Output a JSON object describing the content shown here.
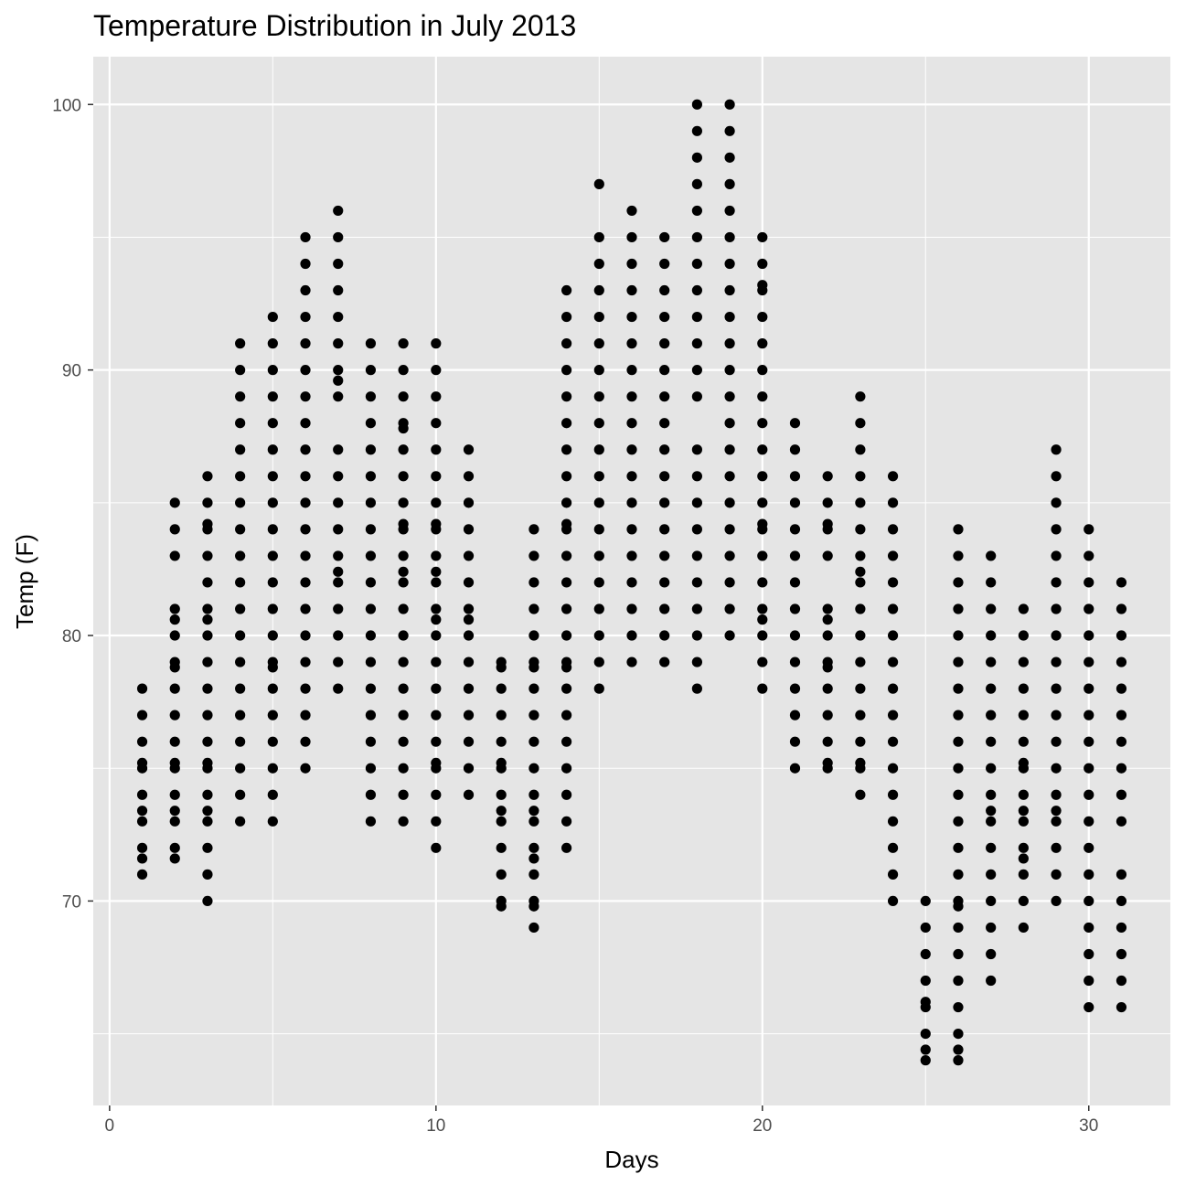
{
  "chart_data": {
    "type": "scatter",
    "title": "Temperature Distribution in July 2013",
    "xlabel": "Days",
    "ylabel": "Temp (F)",
    "xlim": [
      -0.5,
      32.5
    ],
    "ylim": [
      62.3,
      101.8
    ],
    "x_ticks": [
      0,
      10,
      20,
      30
    ],
    "y_ticks": [
      70,
      80,
      90,
      100
    ],
    "grid": true,
    "legend": "none",
    "colors": {
      "panel": "#e5e5e5",
      "grid": "#ffffff",
      "point": "#000000",
      "tick_text": "#4d4d4d"
    },
    "points": [
      [
        1,
        [
          71,
          71.6,
          72,
          73,
          73.4,
          74,
          75,
          75.2,
          76,
          77,
          78
        ]
      ],
      [
        2,
        [
          71.6,
          72,
          73,
          73.4,
          74,
          75,
          75.2,
          76,
          77,
          78,
          78.8,
          79,
          80,
          80.6,
          81,
          83,
          84,
          85
        ]
      ],
      [
        3,
        [
          70,
          71,
          72,
          73,
          73.4,
          74,
          75,
          75.2,
          76,
          77,
          78,
          79,
          80,
          80.6,
          81,
          82,
          83,
          84,
          84.2,
          85,
          86
        ]
      ],
      [
        4,
        [
          73,
          74,
          75,
          76,
          77,
          78,
          79,
          80,
          81,
          82,
          83,
          84,
          85,
          86,
          87,
          88,
          89,
          90,
          91
        ]
      ],
      [
        5,
        [
          73,
          74,
          75,
          76,
          77,
          78,
          78.8,
          79,
          80,
          81,
          82,
          83,
          84,
          85,
          86,
          87,
          88,
          89,
          90,
          91,
          92
        ]
      ],
      [
        6,
        [
          75,
          76,
          77,
          78,
          79,
          80,
          81,
          82,
          83,
          84,
          85,
          86,
          87,
          88,
          89,
          90,
          91,
          92,
          93,
          94,
          95
        ]
      ],
      [
        7,
        [
          78,
          79,
          80,
          81,
          82,
          82.4,
          83,
          84,
          85,
          86,
          87,
          89,
          89.6,
          90,
          91,
          92,
          93,
          94,
          95,
          96
        ]
      ],
      [
        8,
        [
          73,
          74,
          75,
          76,
          77,
          78,
          79,
          80,
          81,
          82,
          83,
          84,
          85,
          86,
          87,
          88,
          89,
          90,
          91
        ]
      ],
      [
        9,
        [
          73,
          74,
          75,
          76,
          77,
          78,
          79,
          80,
          81,
          82,
          82.4,
          83,
          84,
          84.2,
          85,
          86,
          87,
          87.8,
          88,
          89,
          90,
          91
        ]
      ],
      [
        10,
        [
          72,
          73,
          74,
          75,
          75.2,
          76,
          77,
          78,
          79,
          80,
          80.6,
          81,
          82,
          82.4,
          83,
          84,
          84.2,
          85,
          86,
          87,
          88,
          89,
          90,
          91
        ]
      ],
      [
        11,
        [
          74,
          75,
          76,
          77,
          78,
          79,
          80,
          80.6,
          81,
          82,
          83,
          84,
          85,
          86,
          87
        ]
      ],
      [
        12,
        [
          69.8,
          70,
          71,
          72,
          73,
          73.4,
          74,
          75,
          75.2,
          76,
          77,
          78,
          78.8,
          79
        ]
      ],
      [
        13,
        [
          69,
          69.8,
          70,
          71,
          71.6,
          72,
          73,
          73.4,
          74,
          75,
          76,
          77,
          78,
          78.8,
          79,
          80,
          81,
          82,
          83,
          84
        ]
      ],
      [
        14,
        [
          72,
          73,
          74,
          75,
          76,
          77,
          78,
          78.8,
          79,
          80,
          81,
          82,
          83,
          84,
          84.2,
          85,
          86,
          87,
          88,
          89,
          90,
          91,
          92,
          93
        ]
      ],
      [
        15,
        [
          78,
          79,
          80,
          81,
          82,
          83,
          84,
          85,
          86,
          87,
          88,
          89,
          90,
          91,
          92,
          93,
          94,
          95,
          97
        ]
      ],
      [
        16,
        [
          79,
          80,
          81,
          82,
          83,
          84,
          85,
          86,
          87,
          88,
          89,
          90,
          91,
          92,
          93,
          94,
          95,
          96
        ]
      ],
      [
        17,
        [
          79,
          80,
          81,
          82,
          83,
          84,
          85,
          86,
          87,
          88,
          89,
          90,
          91,
          92,
          93,
          94,
          95
        ]
      ],
      [
        18,
        [
          78,
          79,
          80,
          81,
          82,
          83,
          84,
          85,
          86,
          87,
          89,
          90,
          91,
          92,
          93,
          94,
          95,
          96,
          97,
          98,
          99,
          100
        ]
      ],
      [
        19,
        [
          80,
          81,
          82,
          83,
          84,
          85,
          86,
          87,
          88,
          89,
          90,
          91,
          92,
          93,
          94,
          95,
          96,
          97,
          98,
          99,
          100
        ]
      ],
      [
        20,
        [
          78,
          79,
          80,
          80.6,
          81,
          82,
          83,
          84,
          84.2,
          85,
          86,
          87,
          88,
          89,
          90,
          91,
          92,
          93,
          93.2,
          94,
          95
        ]
      ],
      [
        21,
        [
          75,
          76,
          77,
          78,
          79,
          80,
          81,
          82,
          83,
          84,
          85,
          86,
          87,
          88
        ]
      ],
      [
        22,
        [
          75,
          75.2,
          76,
          77,
          78,
          78.8,
          79,
          80,
          80.6,
          81,
          83,
          84,
          84.2,
          85,
          86
        ]
      ],
      [
        23,
        [
          74,
          75,
          75.2,
          76,
          77,
          78,
          79,
          80,
          81,
          82,
          82.4,
          83,
          84,
          85,
          86,
          87,
          88,
          89
        ]
      ],
      [
        24,
        [
          70,
          71,
          72,
          73,
          74,
          75,
          76,
          77,
          78,
          79,
          80,
          81,
          82,
          83,
          84,
          85,
          86
        ]
      ],
      [
        25,
        [
          64,
          64.4,
          65,
          66,
          66.2,
          67,
          68,
          69,
          70
        ]
      ],
      [
        26,
        [
          64,
          64.4,
          65,
          66,
          67,
          68,
          69,
          69.8,
          70,
          71,
          72,
          73,
          74,
          75,
          76,
          77,
          78,
          79,
          80,
          81,
          82,
          83,
          84
        ]
      ],
      [
        27,
        [
          67,
          68,
          69,
          70,
          71,
          72,
          73,
          73.4,
          74,
          75,
          76,
          77,
          78,
          79,
          80,
          81,
          82,
          83
        ]
      ],
      [
        28,
        [
          69,
          70,
          71,
          71.6,
          72,
          73,
          73.4,
          74,
          75,
          75.2,
          76,
          77,
          78,
          79,
          80,
          81
        ]
      ],
      [
        29,
        [
          70,
          71,
          72,
          73,
          73.4,
          74,
          75,
          76,
          77,
          78,
          79,
          80,
          81,
          82,
          83,
          84,
          85,
          86,
          87
        ]
      ],
      [
        30,
        [
          66,
          67,
          68,
          69,
          70,
          71,
          72,
          73,
          74,
          75,
          76,
          77,
          78,
          79,
          80,
          81,
          82,
          83,
          84
        ]
      ],
      [
        31,
        [
          66,
          67,
          68,
          69,
          70,
          71,
          73,
          74,
          75,
          76,
          77,
          78,
          79,
          80,
          81,
          82
        ]
      ]
    ]
  }
}
